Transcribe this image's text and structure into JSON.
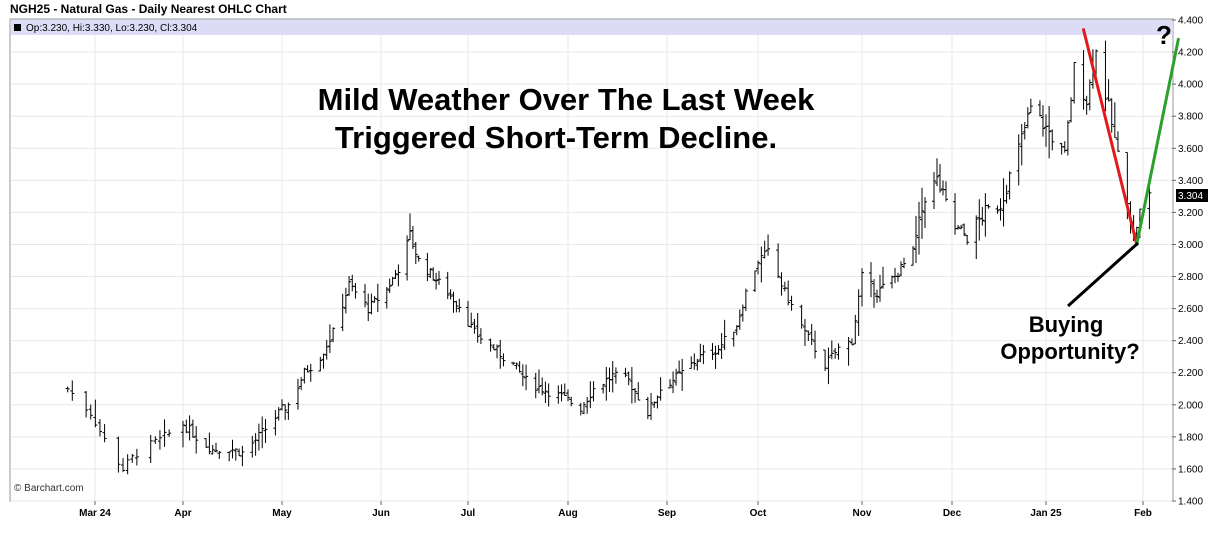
{
  "chart_data": {
    "type": "ohlc",
    "title": "NGH25 - Natural Gas - Daily Nearest OHLC Chart",
    "ohlc_readout": "Op:3.230, Hi:3.330, Lo:3.230, Cl:3.304",
    "last_value_label": "3.304",
    "credit": "© Barchart.com",
    "y_ticks": [
      "1.400",
      "1.600",
      "1.800",
      "2.000",
      "2.200",
      "2.400",
      "2.600",
      "2.800",
      "3.000",
      "3.200",
      "3.400",
      "3.600",
      "3.800",
      "4.000",
      "4.200",
      "4.400"
    ],
    "ylim": [
      1.4,
      4.4
    ],
    "x_ticks": [
      "Mar 24",
      "Apr",
      "May",
      "Jun",
      "Jul",
      "Aug",
      "Sep",
      "Oct",
      "Nov",
      "Dec",
      "Jan 25",
      "Feb"
    ],
    "series": [
      {
        "date": "2024-03-07",
        "close": 2.1
      },
      {
        "date": "2024-03-12",
        "close": 1.95
      },
      {
        "date": "2024-03-15",
        "close": 1.78
      },
      {
        "date": "2024-03-19",
        "close": 1.6
      },
      {
        "date": "2024-03-22",
        "close": 1.7
      },
      {
        "date": "2024-03-27",
        "close": 1.78
      },
      {
        "date": "2024-04-01",
        "close": 1.88
      },
      {
        "date": "2024-04-05",
        "close": 1.8
      },
      {
        "date": "2024-04-10",
        "close": 1.72
      },
      {
        "date": "2024-04-15",
        "close": 1.73
      },
      {
        "date": "2024-04-19",
        "close": 1.7
      },
      {
        "date": "2024-04-23",
        "close": 1.78
      },
      {
        "date": "2024-04-26",
        "close": 1.85
      },
      {
        "date": "2024-05-01",
        "close": 1.97
      },
      {
        "date": "2024-05-03",
        "close": 2.0
      },
      {
        "date": "2024-05-08",
        "close": 2.2
      },
      {
        "date": "2024-05-13",
        "close": 2.3
      },
      {
        "date": "2024-05-17",
        "close": 2.45
      },
      {
        "date": "2024-05-22",
        "close": 2.75
      },
      {
        "date": "2024-05-28",
        "close": 2.6
      },
      {
        "date": "2024-06-03",
        "close": 2.72
      },
      {
        "date": "2024-06-07",
        "close": 2.85
      },
      {
        "date": "2024-06-11",
        "close": 3.05
      },
      {
        "date": "2024-06-14",
        "close": 2.9
      },
      {
        "date": "2024-06-19",
        "close": 2.8
      },
      {
        "date": "2024-06-24",
        "close": 2.7
      },
      {
        "date": "2024-06-28",
        "close": 2.62
      },
      {
        "date": "2024-07-03",
        "close": 2.45
      },
      {
        "date": "2024-07-09",
        "close": 2.35
      },
      {
        "date": "2024-07-15",
        "close": 2.25
      },
      {
        "date": "2024-07-19",
        "close": 2.15
      },
      {
        "date": "2024-07-24",
        "close": 2.1
      },
      {
        "date": "2024-07-30",
        "close": 2.05
      },
      {
        "date": "2024-08-05",
        "close": 1.98
      },
      {
        "date": "2024-08-09",
        "close": 2.1
      },
      {
        "date": "2024-08-15",
        "close": 2.18
      },
      {
        "date": "2024-08-20",
        "close": 2.15
      },
      {
        "date": "2024-08-26",
        "close": 1.95
      },
      {
        "date": "2024-08-30",
        "close": 2.1
      },
      {
        "date": "2024-09-06",
        "close": 2.2
      },
      {
        "date": "2024-09-12",
        "close": 2.3
      },
      {
        "date": "2024-09-18",
        "close": 2.35
      },
      {
        "date": "2024-09-24",
        "close": 2.5
      },
      {
        "date": "2024-09-27",
        "close": 2.7
      },
      {
        "date": "2024-10-01",
        "close": 2.9
      },
      {
        "date": "2024-10-04",
        "close": 2.95
      },
      {
        "date": "2024-10-09",
        "close": 2.7
      },
      {
        "date": "2024-10-15",
        "close": 2.45
      },
      {
        "date": "2024-10-21",
        "close": 2.25
      },
      {
        "date": "2024-10-25",
        "close": 2.35
      },
      {
        "date": "2024-10-29",
        "close": 2.4
      },
      {
        "date": "2024-11-01",
        "close": 2.8
      },
      {
        "date": "2024-11-06",
        "close": 2.7
      },
      {
        "date": "2024-11-12",
        "close": 2.8
      },
      {
        "date": "2024-11-18",
        "close": 2.95
      },
      {
        "date": "2024-11-22",
        "close": 3.3
      },
      {
        "date": "2024-11-26",
        "close": 3.4
      },
      {
        "date": "2024-12-02",
        "close": 3.1
      },
      {
        "date": "2024-12-06",
        "close": 3.05
      },
      {
        "date": "2024-12-12",
        "close": 3.2
      },
      {
        "date": "2024-12-17",
        "close": 3.25
      },
      {
        "date": "2024-12-23",
        "close": 3.6
      },
      {
        "date": "2024-12-27",
        "close": 3.85
      },
      {
        "date": "2025-01-02",
        "close": 3.7
      },
      {
        "date": "2025-01-07",
        "close": 3.55
      },
      {
        "date": "2025-01-10",
        "close": 4.1
      },
      {
        "date": "2025-01-14",
        "close": 3.9
      },
      {
        "date": "2025-01-17",
        "close": 4.2
      },
      {
        "date": "2025-01-21",
        "close": 3.85
      },
      {
        "date": "2025-01-24",
        "close": 3.55
      },
      {
        "date": "2025-01-27",
        "close": 3.3
      },
      {
        "date": "2025-01-29",
        "close": 3.05
      },
      {
        "date": "2025-01-31",
        "close": 3.2
      },
      {
        "date": "2025-02-03",
        "close": 3.304
      }
    ],
    "annotations": {
      "headline_line1": "Mild Weather Over The Last Week",
      "headline_line2": "Triggered Short-Term Decline.",
      "buying_line1": "Buying",
      "buying_line2": "Opportunity?",
      "question_mark": "?"
    },
    "trend_lines": [
      {
        "name": "decline",
        "color": "#e31a1c",
        "from": {
          "date": "2025-01-13",
          "value": 4.34
        },
        "to": {
          "date": "2025-01-30",
          "value": 3.0
        }
      },
      {
        "name": "projection",
        "color": "#2ca02c",
        "from": {
          "date": "2025-01-30",
          "value": 3.0
        },
        "to": {
          "date": "2025-02-12",
          "value": 4.28
        }
      }
    ],
    "colors": {
      "bars": "#000000",
      "readout_bg": "#dcdcf7",
      "decline": "#e31a1c",
      "projection": "#2ca02c",
      "last_label_bg": "#000000"
    },
    "grid": true
  }
}
